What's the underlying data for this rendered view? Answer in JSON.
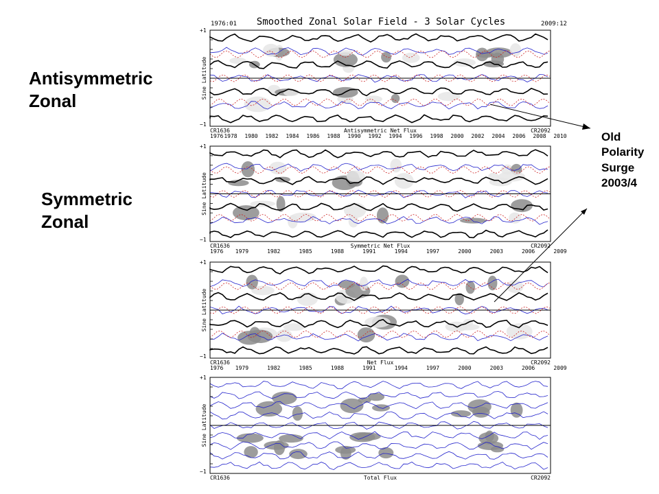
{
  "labels": {
    "antisymmetric": [
      "Antisymmetric",
      "Zonal"
    ],
    "symmetric": [
      "Symmetric",
      "Zonal"
    ],
    "surge": [
      "Old",
      "Polarity",
      "Surge",
      "2003/4"
    ]
  },
  "colors": {
    "positive": "#000000",
    "negative": "#2222cc",
    "dashed": "#cc2222",
    "shade": "#8c8c8c",
    "light": "#e6e6e6"
  },
  "chart_data": [
    {
      "type": "heatmap",
      "title": "Smoothed Zonal Solar Field - 3 Solar Cycles",
      "start_label": "1976:01",
      "end_label": "2009:12",
      "xlabel": "Antisymmetric Net Flux",
      "ylabel": "Sine Latitude",
      "cr_start": "CR1636",
      "cr_end": "CR2092",
      "ytick_top": "+1",
      "ytick_bottom": "−1",
      "years": [
        "1976",
        "1978",
        "1980",
        "1982",
        "1984",
        "1986",
        "1988",
        "1990",
        "1992",
        "1994",
        "1996",
        "1998",
        "2000",
        "2002",
        "2004",
        "2006",
        "2008",
        "2010"
      ]
    },
    {
      "type": "heatmap",
      "xlabel": "Symmetric Net Flux",
      "ylabel": "Sine Latitude",
      "cr_start": "CR1636",
      "cr_end": "CR2092",
      "ytick_top": "+1",
      "ytick_bottom": "−1",
      "years": [
        "1976",
        "1979",
        "1982",
        "1985",
        "1988",
        "1991",
        "1994",
        "1997",
        "2000",
        "2003",
        "2006",
        "2009"
      ]
    },
    {
      "type": "heatmap",
      "xlabel": "Net Flux",
      "ylabel": "Sine Latitude",
      "cr_start": "CR1636",
      "cr_end": "CR2092",
      "ytick_top": "+1",
      "ytick_bottom": "−1",
      "years": [
        "1976",
        "1979",
        "1982",
        "1985",
        "1988",
        "1991",
        "1994",
        "1997",
        "2000",
        "2003",
        "2006",
        "2009"
      ]
    },
    {
      "type": "heatmap",
      "xlabel": "Total Flux",
      "ylabel": "Sine Latitude",
      "cr_start": "CR1636",
      "cr_end": "CR2092",
      "ytick_top": "+1",
      "ytick_bottom": "−1"
    }
  ]
}
